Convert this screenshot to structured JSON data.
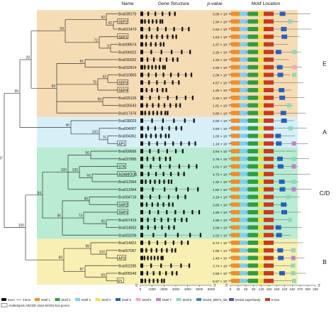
{
  "headers": {
    "name": "Name",
    "gene_structure": "Gene Structure",
    "pvalue": "p-value",
    "motif_location": "Motif Location"
  },
  "genes": [
    {
      "name": "Bra039170",
      "boxed": false,
      "pvalue": "3.05 × 10⁻⁶²",
      "group": "E"
    },
    {
      "name": "SEP2",
      "boxed": true,
      "pvalue": "1.94 × 10⁻¹⁰²",
      "group": "E"
    },
    {
      "name": "Bra021470",
      "boxed": false,
      "pvalue": "2.52 × 10⁻¹⁰²",
      "group": "E"
    },
    {
      "name": "SEP1",
      "boxed": true,
      "pvalue": "1.53 × 10⁻¹⁰²",
      "group": "E"
    },
    {
      "name": "Bra008674",
      "boxed": false,
      "pvalue": "1.37 × 10⁻¹⁰²",
      "group": "E"
    },
    {
      "name": "Bra006022",
      "boxed": false,
      "pvalue": "2.26 × 10⁻¹⁰²",
      "group": "E"
    },
    {
      "name": "Bra030032",
      "boxed": false,
      "pvalue": "1.33 × 10⁻¹⁰²",
      "group": "E"
    },
    {
      "name": "Bra032814",
      "boxed": false,
      "pvalue": "2.69 × 10⁻¹⁰²",
      "group": "E"
    },
    {
      "name": "Bra010865",
      "boxed": false,
      "pvalue": "2.08 × 10⁻¹⁰²",
      "group": "E"
    },
    {
      "name": "SEP3",
      "boxed": true,
      "pvalue": "4.57 × 10⁻¹⁰²",
      "group": "E"
    },
    {
      "name": "SEP4",
      "boxed": true,
      "pvalue": "1.25 × 10⁻¹⁰²",
      "group": "E"
    },
    {
      "name": "Bra025126",
      "boxed": false,
      "pvalue": "2.26 × 10⁻¹⁰²",
      "group": "E"
    },
    {
      "name": "Bra026543",
      "boxed": false,
      "pvalue": "1.81 × 10⁻¹⁰²",
      "group": "E"
    },
    {
      "name": "Bra017376",
      "boxed": false,
      "pvalue": "3.66 × 10⁻¹⁰²",
      "group": "E"
    },
    {
      "name": "Bra038029",
      "boxed": false,
      "pvalue": "2.00 × 10⁻¹⁰²",
      "group": "A"
    },
    {
      "name": "Bra004007",
      "boxed": false,
      "pvalue": "3.59 × 10⁻¹⁰²",
      "group": "A"
    },
    {
      "name": "Bra004361",
      "boxed": false,
      "pvalue": "1.05 × 10⁻¹⁰²",
      "group": "A"
    },
    {
      "name": "AP1",
      "boxed": true,
      "pvalue": "1.18 × 10⁻¹⁰²",
      "group": "A"
    },
    {
      "name": "Bra009696",
      "boxed": false,
      "pvalue": "3.94 × 10⁻¹⁰²",
      "group": "C/D"
    },
    {
      "name": "Bra037895",
      "boxed": false,
      "pvalue": "2.78 × 10⁻¹⁰²",
      "group": "C/D"
    },
    {
      "name": "STK",
      "boxed": true,
      "pvalue": "1.01 × 10⁻¹⁰²",
      "group": "C/D"
    },
    {
      "name": "AGAMOUS",
      "boxed": true,
      "pvalue": "4.73 × 10⁻¹⁰²",
      "group": "C/D"
    },
    {
      "name": "Bra012564",
      "boxed": false,
      "pvalue": "1.32 × 10⁻¹⁰²",
      "group": "C/D"
    },
    {
      "name": "Bra013364",
      "boxed": false,
      "pvalue": "1.84 × 10⁻¹⁰²",
      "group": "C/D"
    },
    {
      "name": "Bra004716",
      "boxed": false,
      "pvalue": "2.19 × 10⁻¹⁰²",
      "group": "C/D"
    },
    {
      "name": "SHP2",
      "boxed": true,
      "pvalue": "2.65 × 10⁻¹⁰²",
      "group": "C/D"
    },
    {
      "name": "SHP1",
      "boxed": true,
      "pvalue": "1.95 × 10⁻¹⁰²",
      "group": "C/D"
    },
    {
      "name": "Bra007419",
      "boxed": false,
      "pvalue": "1.96 × 10⁻¹⁰²",
      "group": "C/D"
    },
    {
      "name": "Bra014552",
      "boxed": false,
      "pvalue": "2.08 × 10⁻¹⁰²",
      "group": "C/D"
    },
    {
      "name": "Bra003206",
      "boxed": false,
      "pvalue": "2.53 × 10⁻¹⁰²",
      "group": "C/D"
    },
    {
      "name": "Bra014822",
      "boxed": false,
      "pvalue": "6.72 × 10⁻¹⁰²",
      "group": "B"
    },
    {
      "name": "Bra007067",
      "boxed": false,
      "pvalue": "1.95 × 10⁻¹⁰²",
      "group": "B"
    },
    {
      "name": "AP3",
      "boxed": true,
      "pvalue": "1.40 × 10⁻¹⁰²",
      "group": "B"
    },
    {
      "name": "Bra002285",
      "boxed": false,
      "pvalue": "3.74 × 10⁻¹⁰²",
      "group": "B"
    },
    {
      "name": "Bra005549",
      "boxed": false,
      "pvalue": "2.59 × 10⁻¹⁰²",
      "group": "B"
    },
    {
      "name": "PI",
      "boxed": true,
      "pvalue": "6.67 × 10⁻¹⁰²",
      "group": "B"
    }
  ],
  "groups": [
    {
      "label": "E",
      "color": "#f6dcb4"
    },
    {
      "label": "A",
      "color": "#d7f0f8"
    },
    {
      "label": "C/D",
      "color": "#b9ecd2"
    },
    {
      "label": "B",
      "color": "#f8f0b2"
    }
  ],
  "bootstrap": [
    "42",
    "92",
    "9",
    "72",
    "69",
    "81",
    "63",
    "78",
    "99",
    "99",
    "28",
    "75",
    "100",
    "45",
    "99",
    "56",
    "66",
    "100",
    "100",
    "98",
    "95",
    "73",
    "45",
    "84",
    "100",
    "98",
    "69",
    "87",
    "98",
    "100",
    "47"
  ],
  "gene_axis": {
    "ticks": [
      "0",
      "1000",
      "2000",
      "3000",
      "4000",
      "5000",
      "6000"
    ],
    "start": "5'",
    "end": "3'"
  },
  "motif_axis": {
    "ticks": [
      "0",
      "30",
      "60",
      "90",
      "120",
      "150",
      "180",
      "210",
      "240",
      "270",
      "300",
      "330"
    ],
    "start": "5'",
    "end": "3'"
  },
  "legend": {
    "items": [
      {
        "label": "Exon",
        "color": "#111111",
        "kind": "box"
      },
      {
        "label": "Intron",
        "color": "#777777",
        "kind": "line"
      },
      {
        "label": "Motif 1",
        "color": "#f28c28",
        "kind": "box"
      },
      {
        "label": "Motif 2",
        "color": "#2e9e3e",
        "kind": "box"
      },
      {
        "label": "Motif 3",
        "color": "#7fd0f0",
        "kind": "box"
      },
      {
        "label": "Motif 4",
        "color": "#f0e040",
        "kind": "box"
      },
      {
        "label": "Motif 5",
        "color": "#2a5fbf",
        "kind": "box"
      },
      {
        "label": "Motif 6",
        "color": "#f4a6c8",
        "kind": "box"
      },
      {
        "label": "Motif 7",
        "color": "#c080d0",
        "kind": "box"
      },
      {
        "label": "Motif 8",
        "color": "#8fd8c0",
        "kind": "box"
      },
      {
        "label": "MADS_MEF2_like",
        "color": "#3a7fd0",
        "kind": "box"
      },
      {
        "label": "MADS superfamily",
        "color": "#6a4a9a",
        "kind": "box"
      },
      {
        "label": "K-box",
        "color": "#c83a1e",
        "kind": "box"
      }
    ],
    "footnote": "Arabidopsis ABCDE class MADS-box genes"
  }
}
